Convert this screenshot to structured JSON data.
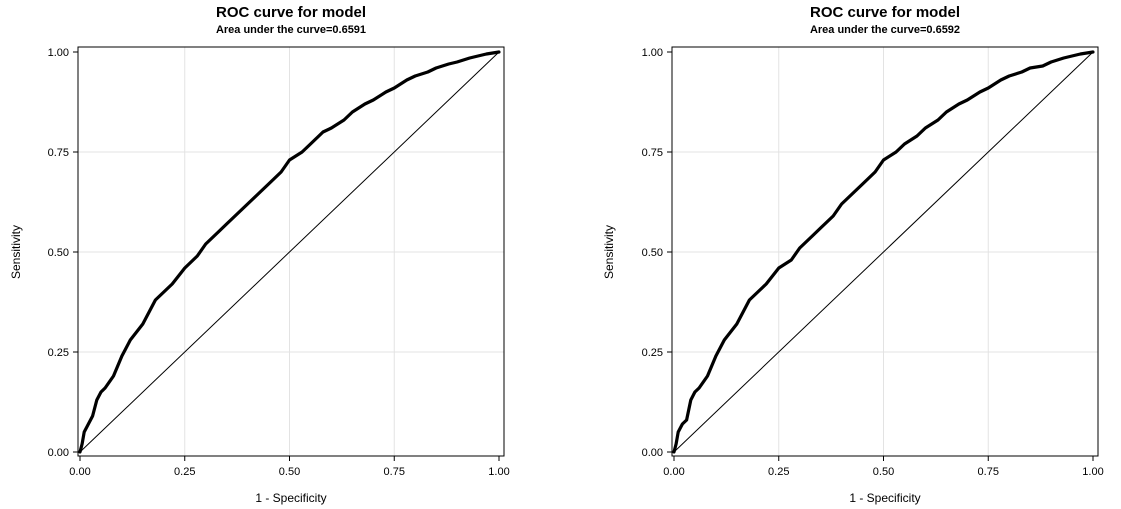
{
  "chart_data": [
    {
      "type": "line",
      "title": "ROC curve for model",
      "subtitle": "Area under the curve=0.6591",
      "xlabel": "1 - Specificity",
      "ylabel": "Sensitivity",
      "xlim": [
        0,
        1
      ],
      "ylim": [
        0,
        1
      ],
      "xticks": [
        "0.00",
        "0.25",
        "0.50",
        "0.75",
        "1.00"
      ],
      "yticks": [
        "0.00",
        "0.25",
        "0.50",
        "0.75",
        "1.00"
      ],
      "grid": true,
      "series": [
        {
          "x": [
            0,
            0.005,
            0.01,
            0.02,
            0.03,
            0.04,
            0.05,
            0.06,
            0.08,
            0.1,
            0.12,
            0.15,
            0.17,
            0.18,
            0.2,
            0.22,
            0.25,
            0.28,
            0.3,
            0.33,
            0.35,
            0.38,
            0.4,
            0.43,
            0.45,
            0.48,
            0.5,
            0.53,
            0.55,
            0.58,
            0.6,
            0.63,
            0.65,
            0.68,
            0.7,
            0.73,
            0.75,
            0.78,
            0.8,
            0.83,
            0.85,
            0.88,
            0.9,
            0.93,
            0.95,
            0.97,
            1.0
          ],
          "y": [
            0,
            0.02,
            0.05,
            0.07,
            0.09,
            0.13,
            0.15,
            0.16,
            0.19,
            0.24,
            0.28,
            0.32,
            0.36,
            0.38,
            0.4,
            0.42,
            0.46,
            0.49,
            0.52,
            0.55,
            0.57,
            0.6,
            0.62,
            0.65,
            0.67,
            0.7,
            0.73,
            0.75,
            0.77,
            0.8,
            0.81,
            0.83,
            0.85,
            0.87,
            0.88,
            0.9,
            0.91,
            0.93,
            0.94,
            0.95,
            0.96,
            0.97,
            0.975,
            0.985,
            0.99,
            0.995,
            1.0
          ]
        }
      ]
    },
    {
      "type": "line",
      "title": "ROC curve for model",
      "subtitle": "Area under the curve=0.6592",
      "xlabel": "1 - Specificity",
      "ylabel": "Sensitivity",
      "xlim": [
        0,
        1
      ],
      "ylim": [
        0,
        1
      ],
      "xticks": [
        "0.00",
        "0.25",
        "0.50",
        "0.75",
        "1.00"
      ],
      "yticks": [
        "0.00",
        "0.25",
        "0.50",
        "0.75",
        "1.00"
      ],
      "grid": true,
      "series": [
        {
          "x": [
            0,
            0.005,
            0.01,
            0.02,
            0.03,
            0.04,
            0.05,
            0.06,
            0.08,
            0.1,
            0.12,
            0.15,
            0.17,
            0.18,
            0.2,
            0.22,
            0.25,
            0.28,
            0.3,
            0.33,
            0.35,
            0.38,
            0.4,
            0.43,
            0.45,
            0.48,
            0.5,
            0.53,
            0.55,
            0.58,
            0.6,
            0.63,
            0.65,
            0.68,
            0.7,
            0.73,
            0.75,
            0.78,
            0.8,
            0.83,
            0.85,
            0.88,
            0.9,
            0.93,
            0.95,
            0.97,
            1.0
          ],
          "y": [
            0,
            0.02,
            0.05,
            0.07,
            0.08,
            0.13,
            0.15,
            0.16,
            0.19,
            0.24,
            0.28,
            0.32,
            0.36,
            0.38,
            0.4,
            0.42,
            0.46,
            0.48,
            0.51,
            0.54,
            0.56,
            0.59,
            0.62,
            0.65,
            0.67,
            0.7,
            0.73,
            0.75,
            0.77,
            0.79,
            0.81,
            0.83,
            0.85,
            0.87,
            0.88,
            0.9,
            0.91,
            0.93,
            0.94,
            0.95,
            0.96,
            0.965,
            0.975,
            0.985,
            0.99,
            0.995,
            1.0
          ]
        }
      ]
    }
  ],
  "colors": {
    "curve": "#000000",
    "diagonal": "#000000",
    "grid": "#e3e3e3",
    "frame": "#000000"
  }
}
